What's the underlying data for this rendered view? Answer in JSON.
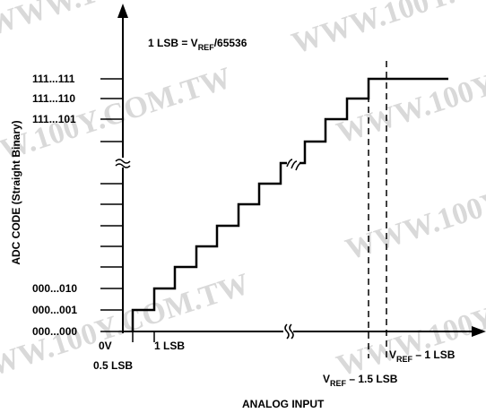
{
  "watermark": "WWW.100Y.COM.TW",
  "lsb_note": {
    "prefix": "1 LSB = V",
    "sub": "REF",
    "suffix": "/65536"
  },
  "y_axis_title": "ADC CODE (Straight Binary)",
  "y_codes": {
    "top": [
      "111...111",
      "111...110",
      "111...101"
    ],
    "bottom": [
      "000...010",
      "000...001",
      "000...000"
    ]
  },
  "x_labels": {
    "zero": "0V",
    "one_lsb": "1 LSB",
    "half_lsb": "0.5 LSB",
    "vref_minus_1": {
      "prefix": "V",
      "sub": "REF",
      "suffix": " – 1 LSB"
    },
    "vref_minus_1_5": {
      "prefix": "V",
      "sub": "REF",
      "suffix": " – 1.5 LSB"
    }
  },
  "x_axis_title": "ANALOG INPUT"
}
